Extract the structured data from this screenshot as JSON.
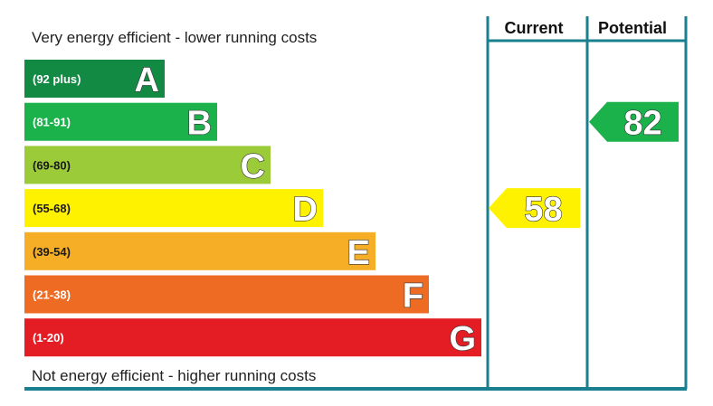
{
  "chart_data": {
    "type": "bar",
    "top_caption": "Very energy efficient - lower running costs",
    "bottom_caption": "Not energy efficient - higher running costs",
    "bands": [
      {
        "letter": "A",
        "range": "(92 plus)",
        "color": "#138a43",
        "range_color": "#ffffff",
        "min": 92,
        "max": 100
      },
      {
        "letter": "B",
        "range": "(81-91)",
        "color": "#1bb24c",
        "range_color": "#ffffff",
        "min": 81,
        "max": 91
      },
      {
        "letter": "C",
        "range": "(69-80)",
        "color": "#9ccb3a",
        "range_color": "#1a1a1a",
        "min": 69,
        "max": 80
      },
      {
        "letter": "D",
        "range": "(55-68)",
        "color": "#fff200",
        "range_color": "#1a1a1a",
        "min": 55,
        "max": 68
      },
      {
        "letter": "E",
        "range": "(39-54)",
        "color": "#f6ae27",
        "range_color": "#1a1a1a",
        "min": 39,
        "max": 54
      },
      {
        "letter": "F",
        "range": "(21-38)",
        "color": "#ee6b24",
        "range_color": "#ffffff",
        "min": 21,
        "max": 38
      },
      {
        "letter": "G",
        "range": "(1-20)",
        "color": "#e31d23",
        "range_color": "#ffffff",
        "min": 1,
        "max": 20
      }
    ],
    "columns": {
      "current": "Current",
      "potential": "Potential"
    },
    "current": {
      "value": 58,
      "label": "58",
      "color": "#fff200"
    },
    "potential": {
      "value": 82,
      "label": "82",
      "color": "#1bb24c"
    },
    "frame_color": "#1a7f8e"
  }
}
